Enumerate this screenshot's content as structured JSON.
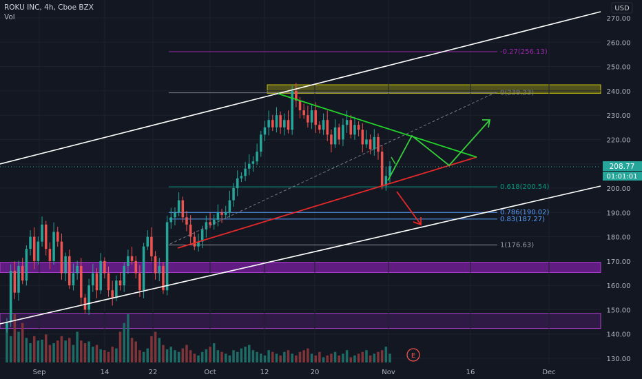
{
  "header": {
    "title": "ROKU INC, 4h, Cboe BZX",
    "vol_label": "Vol"
  },
  "currency": "USD",
  "last_price": "208.77",
  "countdown": "01:01:01",
  "earnings_marker": "E",
  "colors": {
    "bg": "#131722",
    "up": "#26a69a",
    "down": "#ef5350",
    "up_vol": "#1e6b66",
    "down_vol": "#7e3438",
    "channel": "#ffffff",
    "support": "#e52929",
    "resist": "#22d42a",
    "projection": "#36d13b",
    "purple_zone": "#7b1fa2",
    "yellow_zone": "#c8c411"
  },
  "fib_levels": [
    {
      "label": "-0.27(256.13)",
      "value": 256.13,
      "color": "#9c27b0"
    },
    {
      "label": "0(239.23)",
      "value": 239.23,
      "color": "#787b86"
    },
    {
      "label": "0.618(200.54)",
      "value": 200.54,
      "color": "#089981"
    },
    {
      "label": "0.786(190.02)",
      "value": 190.02,
      "color": "#5b9cf6"
    },
    {
      "label": "0.83(187.27)",
      "value": 187.27,
      "color": "#5b9cf6"
    },
    {
      "label": "1(176.63)",
      "value": 176.63,
      "color": "#9598a1"
    }
  ],
  "chart_data": {
    "type": "candlestick",
    "title": "ROKU INC, 4h, Cboe BZX",
    "x_ticks": [
      "Sep",
      "14",
      "22",
      "Oct",
      "12",
      "20",
      "Nov",
      "16",
      "Dec"
    ],
    "y_ticks": [
      "270.00",
      "260.00",
      "250.00",
      "240.00",
      "230.00",
      "220.00",
      "210.00",
      "200.00",
      "190.00",
      "180.00",
      "170.00",
      "160.00",
      "150.00",
      "140.00",
      "130.00"
    ],
    "ylim": [
      127,
      276
    ],
    "candle_closes": [
      145,
      166,
      157,
      168,
      162,
      175,
      180,
      170,
      178,
      185,
      175,
      170,
      182,
      178,
      165,
      172,
      160,
      165,
      168,
      155,
      150,
      160,
      165,
      158,
      170,
      165,
      158,
      155,
      162,
      160,
      168,
      172,
      170,
      165,
      158,
      176,
      180,
      172,
      165,
      168,
      158,
      186,
      188,
      190,
      195,
      188,
      185,
      180,
      176,
      178,
      183,
      186,
      185,
      187,
      190,
      189,
      190,
      195,
      200,
      204,
      205,
      208,
      210,
      211,
      215,
      222,
      225,
      228,
      225,
      230,
      225,
      228,
      224,
      240,
      236,
      232,
      230,
      227,
      232,
      226,
      224,
      228,
      222,
      218,
      225,
      220,
      226,
      228,
      222,
      226,
      224,
      218,
      220,
      216,
      221,
      215,
      201,
      205,
      209
    ],
    "volume": [
      40,
      30,
      55,
      35,
      45,
      28,
      22,
      30,
      25,
      26,
      32,
      20,
      22,
      25,
      30,
      25,
      28,
      20,
      35,
      25,
      22,
      24,
      18,
      20,
      15,
      14,
      12,
      18,
      16,
      35,
      45,
      55,
      28,
      24,
      14,
      12,
      16,
      30,
      35,
      28,
      20,
      15,
      18,
      14,
      12,
      16,
      20,
      14,
      10,
      8,
      12,
      15,
      18,
      22,
      14,
      12,
      10,
      8,
      14,
      12,
      16,
      18,
      20,
      14,
      12,
      10,
      8,
      14,
      12,
      10,
      8,
      12,
      14,
      10,
      8,
      12,
      14,
      16,
      10,
      8,
      12,
      6,
      8,
      10,
      12,
      8,
      10,
      14,
      6,
      8,
      10,
      12,
      14,
      8,
      10,
      12,
      14,
      18,
      10
    ],
    "zones": [
      {
        "name": "purple-zone-upper",
        "from": 165.3,
        "to": 169.5
      },
      {
        "name": "purple-zone-lower",
        "from": 142.3,
        "to": 148.5
      },
      {
        "name": "yellow-zone",
        "from": 239.0,
        "to": 242.5
      }
    ],
    "last_price": 208.77
  }
}
